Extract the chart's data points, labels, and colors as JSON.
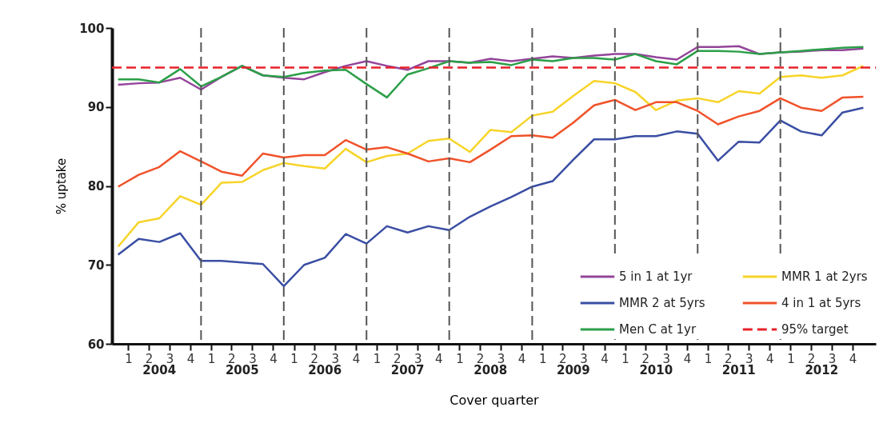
{
  "chart_data": {
    "type": "line",
    "xlabel": "Cover quarter",
    "ylabel": "% uptake",
    "x": [
      "2004-01",
      "2004-04",
      "2004-07",
      "2004-10",
      "2005-01",
      "2005-04",
      "2005-07",
      "2005-10",
      "2006-01",
      "2006-04",
      "2006-07",
      "2006-10",
      "2007-01",
      "2007-04",
      "2007-07",
      "2007-10",
      "2008-01",
      "2008-04",
      "2008-07",
      "2008-10",
      "2009-01",
      "2009-04",
      "2009-07",
      "2009-10",
      "2010-01",
      "2010-04",
      "2010-07",
      "2010-10",
      "2011-01",
      "2011-04",
      "2011-07",
      "2011-10",
      "2012-01",
      "2012-04",
      "2012-07",
      "2012-10",
      "2013-01"
    ],
    "xlim": [
      "2003-12-05",
      "2013-02-25"
    ],
    "xticks": [
      {
        "value": "2004-02-15",
        "label": "1"
      },
      {
        "value": "2004-05-15",
        "label": "2"
      },
      {
        "value": "2004-08-15",
        "label": "3"
      },
      {
        "value": "2004-11-15",
        "label": "4"
      },
      {
        "value": "2005-02-15",
        "label": "1"
      },
      {
        "value": "2005-05-15",
        "label": "2"
      },
      {
        "value": "2005-08-15",
        "label": "3"
      },
      {
        "value": "2005-11-15",
        "label": "4"
      },
      {
        "value": "2006-02-15",
        "label": "1"
      },
      {
        "value": "2006-05-15",
        "label": "2"
      },
      {
        "value": "2006-08-15",
        "label": "3"
      },
      {
        "value": "2006-11-15",
        "label": "4"
      },
      {
        "value": "2007-02-15",
        "label": "1"
      },
      {
        "value": "2007-05-15",
        "label": "2"
      },
      {
        "value": "2007-08-15",
        "label": "3"
      },
      {
        "value": "2007-11-15",
        "label": "4"
      },
      {
        "value": "2008-02-15",
        "label": "1"
      },
      {
        "value": "2008-05-15",
        "label": "2"
      },
      {
        "value": "2008-08-15",
        "label": "3"
      },
      {
        "value": "2008-11-15",
        "label": "4"
      },
      {
        "value": "2009-02-15",
        "label": "1"
      },
      {
        "value": "2009-05-15",
        "label": "2"
      },
      {
        "value": "2009-08-15",
        "label": "3"
      },
      {
        "value": "2009-11-15",
        "label": "4"
      },
      {
        "value": "2010-02-15",
        "label": "1"
      },
      {
        "value": "2010-05-15",
        "label": "2"
      },
      {
        "value": "2010-08-15",
        "label": "3"
      },
      {
        "value": "2010-11-15",
        "label": "4"
      },
      {
        "value": "2011-02-15",
        "label": "1"
      },
      {
        "value": "2011-05-15",
        "label": "2"
      },
      {
        "value": "2011-08-15",
        "label": "3"
      },
      {
        "value": "2011-11-15",
        "label": "4"
      },
      {
        "value": "2012-02-15",
        "label": "1"
      },
      {
        "value": "2012-05-15",
        "label": "2"
      },
      {
        "value": "2012-08-15",
        "label": "3"
      },
      {
        "value": "2012-11-15",
        "label": "4"
      }
    ],
    "annotations": [
      "2004",
      "2005",
      "2006",
      "2007",
      "2008",
      "2009",
      "2010",
      "2011",
      "2012"
    ],
    "ylim": [
      60,
      100
    ],
    "yticks": [
      60,
      70,
      80,
      90,
      100
    ],
    "grid": false,
    "legend": "bottom right",
    "line_style": "solid",
    "series": [
      {
        "name": "5 in 1 at 1yr",
        "color": "#94449a",
        "values": [
          92.8,
          93.0,
          93.1,
          93.7,
          92.2,
          93.8,
          95.2,
          94.0,
          93.7,
          93.5,
          94.4,
          95.2,
          95.8,
          95.2,
          94.7,
          95.8,
          95.8,
          95.6,
          96.1,
          95.8,
          96.1,
          96.4,
          96.2,
          96.5,
          96.7,
          96.7,
          96.3,
          96.0,
          97.6,
          97.6,
          97.7,
          96.7,
          96.9,
          97.0,
          97.2,
          97.2,
          97.4
        ]
      },
      {
        "name": "MMR 2 at 5yrs",
        "color": "#3a4ea3",
        "values": [
          71.3,
          73.3,
          72.9,
          74.0,
          70.5,
          70.5,
          70.3,
          70.1,
          67.3,
          70.0,
          70.9,
          73.9,
          72.7,
          74.9,
          74.1,
          74.9,
          74.4,
          76.1,
          77.4,
          78.6,
          79.9,
          80.6,
          83.3,
          85.9,
          85.9,
          86.3,
          86.3,
          86.9,
          86.6,
          83.2,
          85.6,
          85.5,
          88.3,
          86.9,
          86.4,
          89.3,
          89.9
        ]
      },
      {
        "name": "Men C at 1yr",
        "color": "#2b9f48",
        "values": [
          93.5,
          93.5,
          93.1,
          94.8,
          92.6,
          93.8,
          95.2,
          94.0,
          93.8,
          94.3,
          94.6,
          94.7,
          92.9,
          91.2,
          94.1,
          94.9,
          95.8,
          95.6,
          95.7,
          95.3,
          96.0,
          95.8,
          96.2,
          96.2,
          96.0,
          96.7,
          95.8,
          95.4,
          97.1,
          97.1,
          97.0,
          96.7,
          96.9,
          97.1,
          97.3,
          97.5,
          97.6
        ]
      },
      {
        "name": "MMR 1 at 2yrs",
        "color": "#f7d428",
        "values": [
          72.3,
          75.4,
          75.9,
          78.7,
          77.6,
          80.4,
          80.5,
          82.0,
          82.9,
          82.5,
          82.2,
          84.7,
          83.0,
          83.8,
          84.1,
          85.7,
          86.0,
          84.3,
          87.1,
          86.8,
          88.9,
          89.4,
          91.4,
          93.3,
          93.0,
          91.9,
          89.6,
          90.8,
          91.1,
          90.6,
          92.0,
          91.7,
          93.8,
          94.0,
          93.7,
          94.0,
          95.2
        ]
      },
      {
        "name": "4 in 1 at 5yrs",
        "color": "#f0522a",
        "values": [
          79.9,
          81.4,
          82.4,
          84.4,
          83.1,
          81.8,
          81.3,
          84.1,
          83.6,
          83.9,
          83.9,
          85.8,
          84.6,
          84.9,
          84.1,
          83.1,
          83.5,
          83.0,
          84.6,
          86.3,
          86.4,
          86.1,
          88.0,
          90.2,
          90.9,
          89.6,
          90.6,
          90.6,
          89.5,
          87.8,
          88.8,
          89.5,
          91.1,
          89.9,
          89.5,
          91.2,
          91.3
        ]
      }
    ],
    "ref_lines": [
      {
        "axis": "y",
        "value": 95,
        "label": "95% target",
        "color": "#e8222a",
        "line_style": "dashed"
      },
      {
        "axis": "x",
        "value": "2005-01",
        "color": "#555555",
        "line_style": "dashed"
      },
      {
        "axis": "x",
        "value": "2006-01",
        "color": "#555555",
        "line_style": "dashed"
      },
      {
        "axis": "x",
        "value": "2007-01",
        "color": "#555555",
        "line_style": "dashed"
      },
      {
        "axis": "x",
        "value": "2008-01",
        "color": "#555555",
        "line_style": "dashed"
      },
      {
        "axis": "x",
        "value": "2009-01",
        "color": "#555555",
        "line_style": "dashed"
      },
      {
        "axis": "x",
        "value": "2010-01",
        "color": "#555555",
        "line_style": "dashed"
      },
      {
        "axis": "x",
        "value": "2011-01",
        "color": "#555555",
        "line_style": "dashed"
      },
      {
        "axis": "x",
        "value": "2012-01",
        "color": "#555555",
        "line_style": "dashed"
      }
    ]
  }
}
